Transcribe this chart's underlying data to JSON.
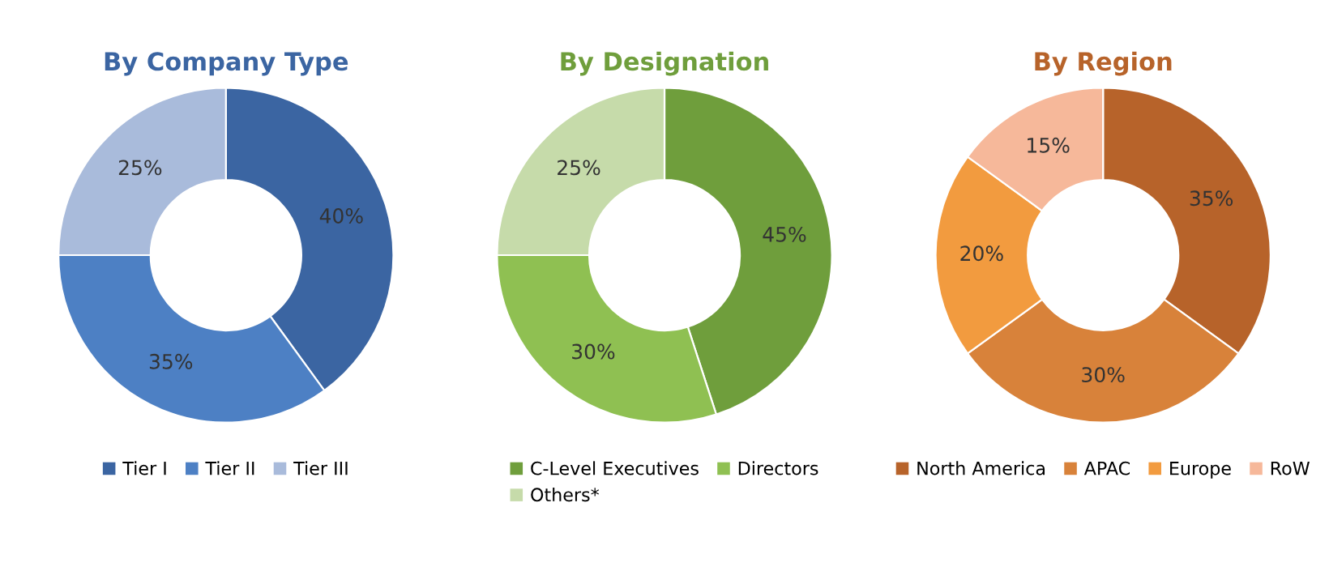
{
  "chart_data": [
    {
      "type": "donut",
      "title": "By Company Type",
      "categories": [
        "Tier I",
        "Tier II",
        "Tier III"
      ],
      "values": [
        40,
        35,
        25
      ],
      "value_labels": [
        "40%",
        "35%",
        "25%"
      ],
      "colors": [
        "#3b65a2",
        "#4d80c4",
        "#a9bbdb"
      ],
      "legend": "bottom"
    },
    {
      "type": "donut",
      "title": "By Designation",
      "categories": [
        "C-Level Executives",
        "Directors",
        "Others*"
      ],
      "values": [
        45,
        30,
        25
      ],
      "value_labels": [
        "45%",
        "30%",
        "25%"
      ],
      "colors": [
        "#6f9e3c",
        "#8fc052",
        "#c6dbaa"
      ],
      "legend": "bottom"
    },
    {
      "type": "donut",
      "title": "By Region",
      "categories": [
        "North America",
        "APAC",
        "Europe",
        "RoW"
      ],
      "values": [
        35,
        30,
        20,
        15
      ],
      "value_labels": [
        "35%",
        "30%",
        "20%",
        "15%"
      ],
      "colors": [
        "#b7632a",
        "#d8823a",
        "#f29b3f",
        "#f6b89a"
      ],
      "legend": "bottom"
    }
  ]
}
